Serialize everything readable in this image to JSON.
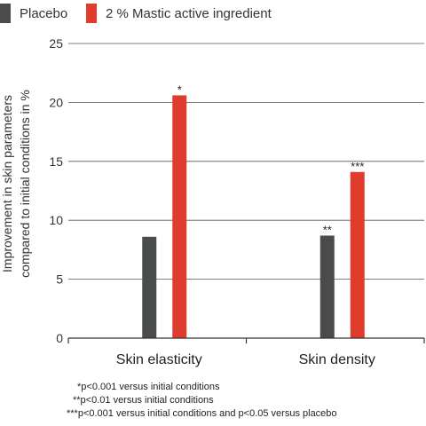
{
  "chart_data": {
    "type": "bar",
    "categories": [
      "Skin elasticity",
      "Skin density"
    ],
    "series": [
      {
        "name": "Placebo",
        "values": [
          8.6,
          8.7
        ],
        "color": "#4a4b4b",
        "significance": [
          "",
          "**"
        ]
      },
      {
        "name": "2 % Mastic active ingredient",
        "values": [
          20.6,
          14.1
        ],
        "color": "#e03c2e",
        "significance": [
          "*",
          "***"
        ]
      }
    ],
    "ylabel_lines": [
      "Improvement in skin parameters",
      "compared to initial conditions in %"
    ],
    "yticks": [
      0,
      5,
      10,
      15,
      20,
      25
    ],
    "ylim": [
      0,
      25
    ],
    "grid": true,
    "legend_position": "top-left"
  },
  "footnotes": [
    "*p<0.001 versus initial conditions",
    "**p<0.01 versus initial conditions",
    "***p<0.001 versus initial conditions and p<0.05 versus placebo"
  ]
}
